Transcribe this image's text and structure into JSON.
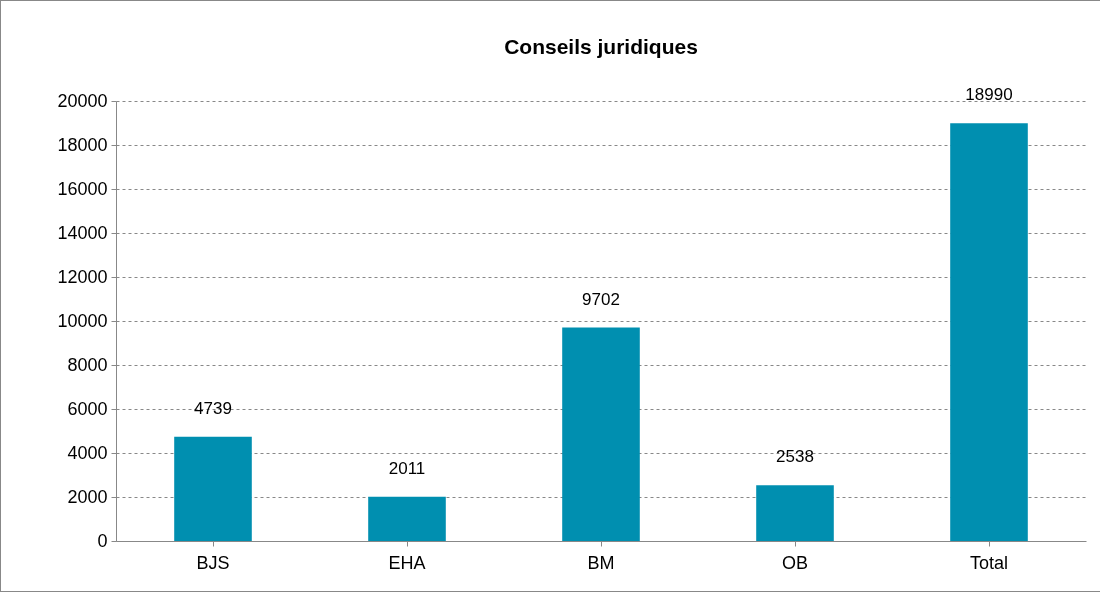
{
  "chart_data": {
    "type": "bar",
    "title": "Conseils juridiques",
    "categories": [
      "BJS",
      "EHA",
      "BM",
      "OB",
      "Total"
    ],
    "values": [
      4739,
      2011,
      9702,
      2538,
      18990
    ],
    "color": "#008fb0",
    "ylim": [
      0,
      20000
    ],
    "yticks": [
      0,
      2000,
      4000,
      6000,
      8000,
      10000,
      12000,
      14000,
      16000,
      18000,
      20000
    ],
    "grid": "y",
    "data_labels": true
  }
}
